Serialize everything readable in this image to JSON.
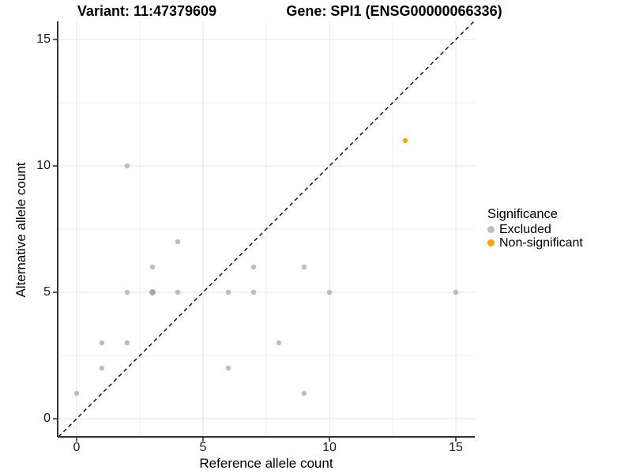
{
  "header": {
    "variant_title": "Variant: 11:47379609",
    "gene_title": "Gene: SPI1 (ENSG00000066336)"
  },
  "axes": {
    "x_label": "Reference allele count",
    "y_label": "Alternative allele count"
  },
  "legend": {
    "title": "Significance",
    "items": [
      {
        "label": "Excluded",
        "color": "#bdbdbd"
      },
      {
        "label": "Non-significant",
        "color": "#FFA500"
      }
    ]
  },
  "chart_data": {
    "type": "scatter",
    "title": "Variant: 11:47379609 / Gene: SPI1 (ENSG00000066336)",
    "xlabel": "Reference allele count",
    "ylabel": "Alternative allele count",
    "xlim": [
      -0.75,
      15.75
    ],
    "ylim": [
      -0.75,
      15.75
    ],
    "x_ticks": [
      0,
      5,
      10,
      15
    ],
    "y_ticks": [
      0,
      5,
      10,
      15
    ],
    "x_minor_gridlines": [
      2.5,
      7.5,
      12.5
    ],
    "y_minor_gridlines": [
      2.5,
      7.5,
      12.5
    ],
    "grid": true,
    "legend_title": "Significance",
    "legend_position": "right",
    "identity_line": {
      "equation": "y = x",
      "style": "dashed",
      "color": "#000000"
    },
    "series": [
      {
        "name": "Excluded",
        "color": "#bdbdbd",
        "overplot_color": "#a6a6a6",
        "points": [
          [
            0,
            1,
            1
          ],
          [
            1,
            2,
            1
          ],
          [
            1,
            3,
            1
          ],
          [
            2,
            3,
            1
          ],
          [
            2,
            5,
            1
          ],
          [
            2,
            10,
            1
          ],
          [
            3,
            5,
            2
          ],
          [
            3,
            6,
            1
          ],
          [
            4,
            5,
            1
          ],
          [
            4,
            7,
            1
          ],
          [
            6,
            2,
            1
          ],
          [
            6,
            5,
            1
          ],
          [
            7,
            5,
            1
          ],
          [
            7,
            6,
            1
          ],
          [
            8,
            3,
            1
          ],
          [
            9,
            1,
            1
          ],
          [
            9,
            6,
            1
          ],
          [
            10,
            5,
            1
          ],
          [
            15,
            5,
            1
          ]
        ]
      },
      {
        "name": "Non-significant",
        "color": "#FFA500",
        "points": [
          [
            13,
            11,
            1
          ]
        ]
      }
    ]
  },
  "colors": {
    "background": "#ffffff",
    "grid_major": "#e3e3e3",
    "grid_minor": "#efefef",
    "axis_line": "#333333",
    "dashed_line": "#000000"
  }
}
